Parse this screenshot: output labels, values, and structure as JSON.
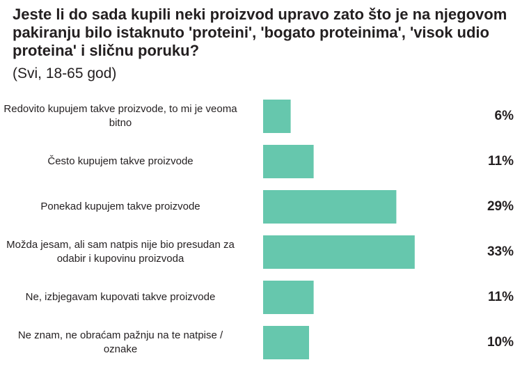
{
  "chart_data": {
    "type": "bar",
    "orientation": "horizontal",
    "title": "Jeste li do sada kupili neki proizvod upravo zato što je na njegovom pakiranju bilo istaknuto 'proteini', 'bogato proteinima', 'visok udio proteina' i sličnu poruku?",
    "subtitle": "(Svi, 18-65 god)",
    "categories": [
      "Redovito kupujem takve proizvode, to mi je veoma bitno",
      "Često kupujem takve proizvode",
      "Ponekad kupujem takve proizvode",
      "Možda jesam, ali sam natpis nije bio presudan za odabir i kupovinu proizvoda",
      "Ne, izbjegavam kupovati takve proizvode",
      "Ne znam, ne obraćam pažnju na te natpise / oznake"
    ],
    "values": [
      6,
      11,
      29,
      33,
      11,
      10
    ],
    "value_labels": [
      "6%",
      "11%",
      "29%",
      "33%",
      "11%",
      "10%"
    ],
    "unit": "%",
    "grid": false,
    "legend": "none",
    "bar_color": "#66c7ad"
  }
}
